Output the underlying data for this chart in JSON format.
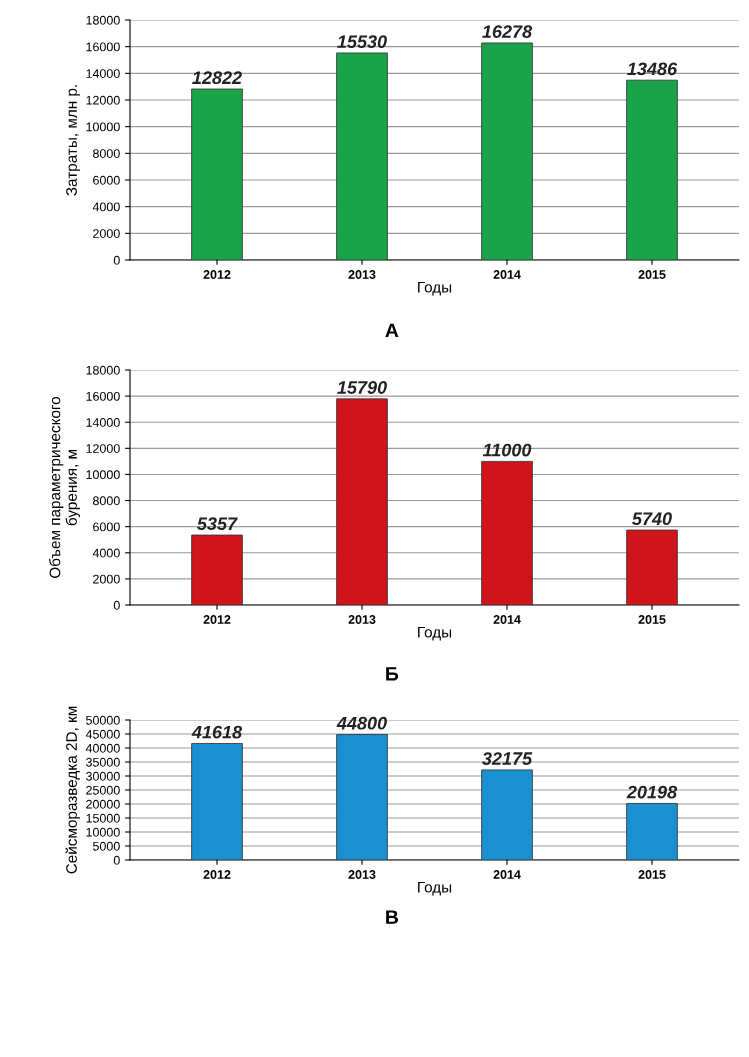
{
  "chart_data": [
    {
      "type": "bar",
      "categories": [
        "2012",
        "2013",
        "2014",
        "2015"
      ],
      "values": [
        12822,
        15530,
        16278,
        13486
      ],
      "color": "#1aa34a",
      "ylabel": "Затраты, млн р.",
      "xlabel": "Годы",
      "ylim": [
        0,
        18000
      ],
      "yticks": [
        0,
        2000,
        4000,
        6000,
        8000,
        10000,
        12000,
        14000,
        16000,
        18000
      ],
      "grid": "y",
      "data_labels": true,
      "annotations": [
        "А"
      ]
    },
    {
      "type": "bar",
      "categories": [
        "2012",
        "2013",
        "2014",
        "2015"
      ],
      "values": [
        5357,
        15790,
        11000,
        5740
      ],
      "color": "#d0141c",
      "ylabel": "Объем параметрического\nбурения, м",
      "xlabel": "Годы",
      "ylim": [
        0,
        18000
      ],
      "yticks": [
        0,
        2000,
        4000,
        6000,
        8000,
        10000,
        12000,
        14000,
        16000,
        18000
      ],
      "grid": "y",
      "data_labels": true,
      "annotations": [
        "Б"
      ]
    },
    {
      "type": "bar",
      "categories": [
        "2012",
        "2013",
        "2014",
        "2015"
      ],
      "values": [
        41618,
        44800,
        32175,
        20198
      ],
      "color": "#1a90d0",
      "ylabel": "Сейсморазведка 2D, км",
      "xlabel": "Годы",
      "ylim": [
        0,
        50000
      ],
      "yticks": [
        0,
        5000,
        10000,
        15000,
        20000,
        25000,
        30000,
        35000,
        40000,
        45000,
        50000
      ],
      "grid": "y",
      "data_labels": true,
      "annotations": [
        "В"
      ]
    }
  ]
}
